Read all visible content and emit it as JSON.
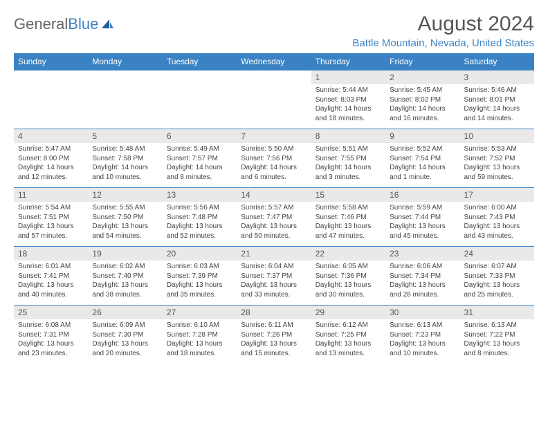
{
  "brand": {
    "general": "General",
    "blue": "Blue"
  },
  "title": "August 2024",
  "location": "Battle Mountain, Nevada, United States",
  "colors": {
    "accent": "#3b82c4",
    "daynum_bg": "#e9e9e9",
    "text": "#444444",
    "title_text": "#555555"
  },
  "weekdays": [
    "Sunday",
    "Monday",
    "Tuesday",
    "Wednesday",
    "Thursday",
    "Friday",
    "Saturday"
  ],
  "weeks": [
    [
      null,
      null,
      null,
      null,
      {
        "n": "1",
        "sr": "5:44 AM",
        "ss": "8:03 PM",
        "dl": "14 hours and 18 minutes."
      },
      {
        "n": "2",
        "sr": "5:45 AM",
        "ss": "8:02 PM",
        "dl": "14 hours and 16 minutes."
      },
      {
        "n": "3",
        "sr": "5:46 AM",
        "ss": "8:01 PM",
        "dl": "14 hours and 14 minutes."
      }
    ],
    [
      {
        "n": "4",
        "sr": "5:47 AM",
        "ss": "8:00 PM",
        "dl": "14 hours and 12 minutes."
      },
      {
        "n": "5",
        "sr": "5:48 AM",
        "ss": "7:58 PM",
        "dl": "14 hours and 10 minutes."
      },
      {
        "n": "6",
        "sr": "5:49 AM",
        "ss": "7:57 PM",
        "dl": "14 hours and 8 minutes."
      },
      {
        "n": "7",
        "sr": "5:50 AM",
        "ss": "7:56 PM",
        "dl": "14 hours and 6 minutes."
      },
      {
        "n": "8",
        "sr": "5:51 AM",
        "ss": "7:55 PM",
        "dl": "14 hours and 3 minutes."
      },
      {
        "n": "9",
        "sr": "5:52 AM",
        "ss": "7:54 PM",
        "dl": "14 hours and 1 minute."
      },
      {
        "n": "10",
        "sr": "5:53 AM",
        "ss": "7:52 PM",
        "dl": "13 hours and 59 minutes."
      }
    ],
    [
      {
        "n": "11",
        "sr": "5:54 AM",
        "ss": "7:51 PM",
        "dl": "13 hours and 57 minutes."
      },
      {
        "n": "12",
        "sr": "5:55 AM",
        "ss": "7:50 PM",
        "dl": "13 hours and 54 minutes."
      },
      {
        "n": "13",
        "sr": "5:56 AM",
        "ss": "7:48 PM",
        "dl": "13 hours and 52 minutes."
      },
      {
        "n": "14",
        "sr": "5:57 AM",
        "ss": "7:47 PM",
        "dl": "13 hours and 50 minutes."
      },
      {
        "n": "15",
        "sr": "5:58 AM",
        "ss": "7:46 PM",
        "dl": "13 hours and 47 minutes."
      },
      {
        "n": "16",
        "sr": "5:59 AM",
        "ss": "7:44 PM",
        "dl": "13 hours and 45 minutes."
      },
      {
        "n": "17",
        "sr": "6:00 AM",
        "ss": "7:43 PM",
        "dl": "13 hours and 43 minutes."
      }
    ],
    [
      {
        "n": "18",
        "sr": "6:01 AM",
        "ss": "7:41 PM",
        "dl": "13 hours and 40 minutes."
      },
      {
        "n": "19",
        "sr": "6:02 AM",
        "ss": "7:40 PM",
        "dl": "13 hours and 38 minutes."
      },
      {
        "n": "20",
        "sr": "6:03 AM",
        "ss": "7:39 PM",
        "dl": "13 hours and 35 minutes."
      },
      {
        "n": "21",
        "sr": "6:04 AM",
        "ss": "7:37 PM",
        "dl": "13 hours and 33 minutes."
      },
      {
        "n": "22",
        "sr": "6:05 AM",
        "ss": "7:36 PM",
        "dl": "13 hours and 30 minutes."
      },
      {
        "n": "23",
        "sr": "6:06 AM",
        "ss": "7:34 PM",
        "dl": "13 hours and 28 minutes."
      },
      {
        "n": "24",
        "sr": "6:07 AM",
        "ss": "7:33 PM",
        "dl": "13 hours and 25 minutes."
      }
    ],
    [
      {
        "n": "25",
        "sr": "6:08 AM",
        "ss": "7:31 PM",
        "dl": "13 hours and 23 minutes."
      },
      {
        "n": "26",
        "sr": "6:09 AM",
        "ss": "7:30 PM",
        "dl": "13 hours and 20 minutes."
      },
      {
        "n": "27",
        "sr": "6:10 AM",
        "ss": "7:28 PM",
        "dl": "13 hours and 18 minutes."
      },
      {
        "n": "28",
        "sr": "6:11 AM",
        "ss": "7:26 PM",
        "dl": "13 hours and 15 minutes."
      },
      {
        "n": "29",
        "sr": "6:12 AM",
        "ss": "7:25 PM",
        "dl": "13 hours and 13 minutes."
      },
      {
        "n": "30",
        "sr": "6:13 AM",
        "ss": "7:23 PM",
        "dl": "13 hours and 10 minutes."
      },
      {
        "n": "31",
        "sr": "6:13 AM",
        "ss": "7:22 PM",
        "dl": "13 hours and 8 minutes."
      }
    ]
  ],
  "labels": {
    "sunrise": "Sunrise: ",
    "sunset": "Sunset: ",
    "daylight": "Daylight: "
  }
}
